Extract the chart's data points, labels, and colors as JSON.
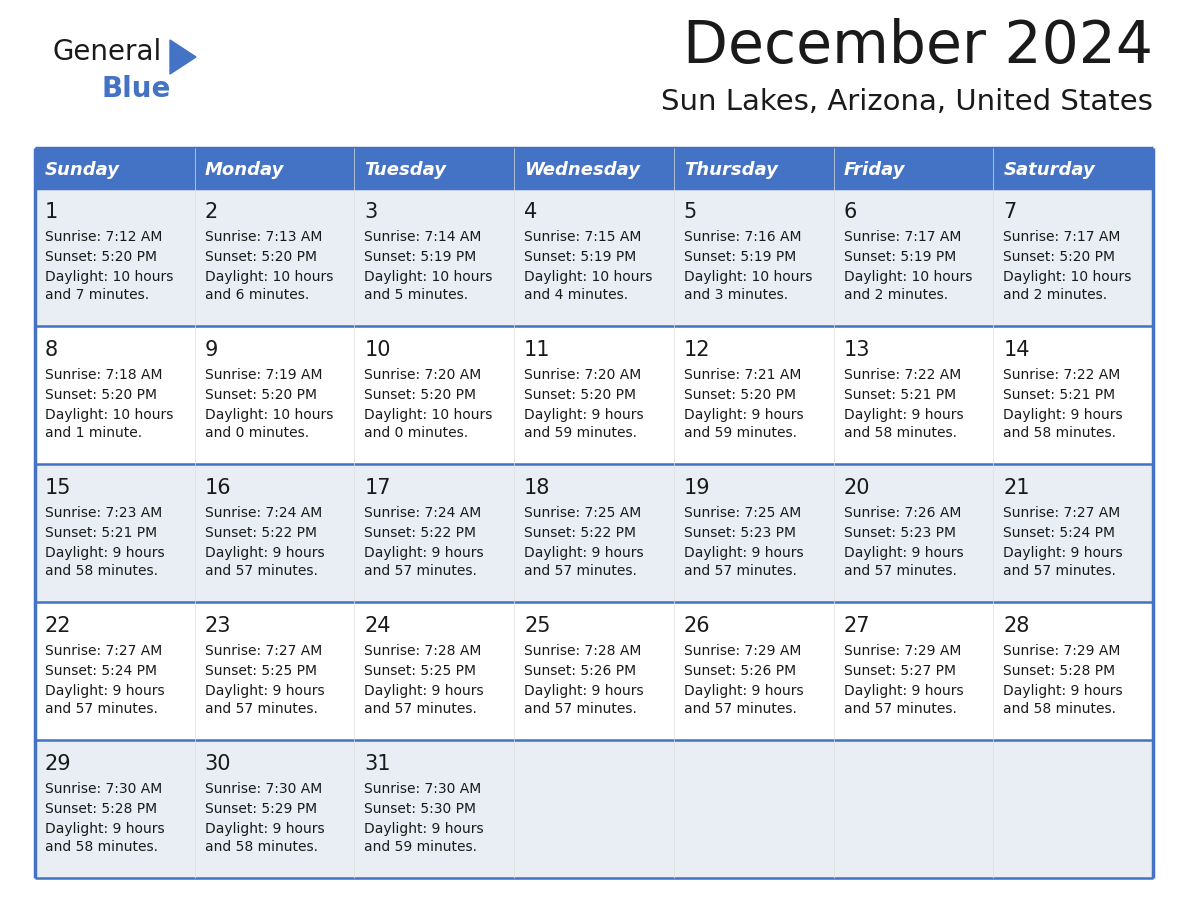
{
  "title": "December 2024",
  "subtitle": "Sun Lakes, Arizona, United States",
  "header_bg_color": "#4472C4",
  "header_text_color": "#FFFFFF",
  "row_bg_odd": "#E8EEF4",
  "row_bg_even": "#FFFFFF",
  "border_color": "#4472C4",
  "day_names": [
    "Sunday",
    "Monday",
    "Tuesday",
    "Wednesday",
    "Thursday",
    "Friday",
    "Saturday"
  ],
  "calendar_data": [
    [
      {
        "day": "1",
        "sunrise": "7:12 AM",
        "sunset": "5:20 PM",
        "daylight": "10 hours",
        "daylight2": "and 7 minutes."
      },
      {
        "day": "2",
        "sunrise": "7:13 AM",
        "sunset": "5:20 PM",
        "daylight": "10 hours",
        "daylight2": "and 6 minutes."
      },
      {
        "day": "3",
        "sunrise": "7:14 AM",
        "sunset": "5:19 PM",
        "daylight": "10 hours",
        "daylight2": "and 5 minutes."
      },
      {
        "day": "4",
        "sunrise": "7:15 AM",
        "sunset": "5:19 PM",
        "daylight": "10 hours",
        "daylight2": "and 4 minutes."
      },
      {
        "day": "5",
        "sunrise": "7:16 AM",
        "sunset": "5:19 PM",
        "daylight": "10 hours",
        "daylight2": "and 3 minutes."
      },
      {
        "day": "6",
        "sunrise": "7:17 AM",
        "sunset": "5:19 PM",
        "daylight": "10 hours",
        "daylight2": "and 2 minutes."
      },
      {
        "day": "7",
        "sunrise": "7:17 AM",
        "sunset": "5:20 PM",
        "daylight": "10 hours",
        "daylight2": "and 2 minutes."
      }
    ],
    [
      {
        "day": "8",
        "sunrise": "7:18 AM",
        "sunset": "5:20 PM",
        "daylight": "10 hours",
        "daylight2": "and 1 minute."
      },
      {
        "day": "9",
        "sunrise": "7:19 AM",
        "sunset": "5:20 PM",
        "daylight": "10 hours",
        "daylight2": "and 0 minutes."
      },
      {
        "day": "10",
        "sunrise": "7:20 AM",
        "sunset": "5:20 PM",
        "daylight": "10 hours",
        "daylight2": "and 0 minutes."
      },
      {
        "day": "11",
        "sunrise": "7:20 AM",
        "sunset": "5:20 PM",
        "daylight": "9 hours",
        "daylight2": "and 59 minutes."
      },
      {
        "day": "12",
        "sunrise": "7:21 AM",
        "sunset": "5:20 PM",
        "daylight": "9 hours",
        "daylight2": "and 59 minutes."
      },
      {
        "day": "13",
        "sunrise": "7:22 AM",
        "sunset": "5:21 PM",
        "daylight": "9 hours",
        "daylight2": "and 58 minutes."
      },
      {
        "day": "14",
        "sunrise": "7:22 AM",
        "sunset": "5:21 PM",
        "daylight": "9 hours",
        "daylight2": "and 58 minutes."
      }
    ],
    [
      {
        "day": "15",
        "sunrise": "7:23 AM",
        "sunset": "5:21 PM",
        "daylight": "9 hours",
        "daylight2": "and 58 minutes."
      },
      {
        "day": "16",
        "sunrise": "7:24 AM",
        "sunset": "5:22 PM",
        "daylight": "9 hours",
        "daylight2": "and 57 minutes."
      },
      {
        "day": "17",
        "sunrise": "7:24 AM",
        "sunset": "5:22 PM",
        "daylight": "9 hours",
        "daylight2": "and 57 minutes."
      },
      {
        "day": "18",
        "sunrise": "7:25 AM",
        "sunset": "5:22 PM",
        "daylight": "9 hours",
        "daylight2": "and 57 minutes."
      },
      {
        "day": "19",
        "sunrise": "7:25 AM",
        "sunset": "5:23 PM",
        "daylight": "9 hours",
        "daylight2": "and 57 minutes."
      },
      {
        "day": "20",
        "sunrise": "7:26 AM",
        "sunset": "5:23 PM",
        "daylight": "9 hours",
        "daylight2": "and 57 minutes."
      },
      {
        "day": "21",
        "sunrise": "7:27 AM",
        "sunset": "5:24 PM",
        "daylight": "9 hours",
        "daylight2": "and 57 minutes."
      }
    ],
    [
      {
        "day": "22",
        "sunrise": "7:27 AM",
        "sunset": "5:24 PM",
        "daylight": "9 hours",
        "daylight2": "and 57 minutes."
      },
      {
        "day": "23",
        "sunrise": "7:27 AM",
        "sunset": "5:25 PM",
        "daylight": "9 hours",
        "daylight2": "and 57 minutes."
      },
      {
        "day": "24",
        "sunrise": "7:28 AM",
        "sunset": "5:25 PM",
        "daylight": "9 hours",
        "daylight2": "and 57 minutes."
      },
      {
        "day": "25",
        "sunrise": "7:28 AM",
        "sunset": "5:26 PM",
        "daylight": "9 hours",
        "daylight2": "and 57 minutes."
      },
      {
        "day": "26",
        "sunrise": "7:29 AM",
        "sunset": "5:26 PM",
        "daylight": "9 hours",
        "daylight2": "and 57 minutes."
      },
      {
        "day": "27",
        "sunrise": "7:29 AM",
        "sunset": "5:27 PM",
        "daylight": "9 hours",
        "daylight2": "and 57 minutes."
      },
      {
        "day": "28",
        "sunrise": "7:29 AM",
        "sunset": "5:28 PM",
        "daylight": "9 hours",
        "daylight2": "and 58 minutes."
      }
    ],
    [
      {
        "day": "29",
        "sunrise": "7:30 AM",
        "sunset": "5:28 PM",
        "daylight": "9 hours",
        "daylight2": "and 58 minutes."
      },
      {
        "day": "30",
        "sunrise": "7:30 AM",
        "sunset": "5:29 PM",
        "daylight": "9 hours",
        "daylight2": "and 58 minutes."
      },
      {
        "day": "31",
        "sunrise": "7:30 AM",
        "sunset": "5:30 PM",
        "daylight": "9 hours",
        "daylight2": "and 59 minutes."
      },
      null,
      null,
      null,
      null
    ]
  ]
}
